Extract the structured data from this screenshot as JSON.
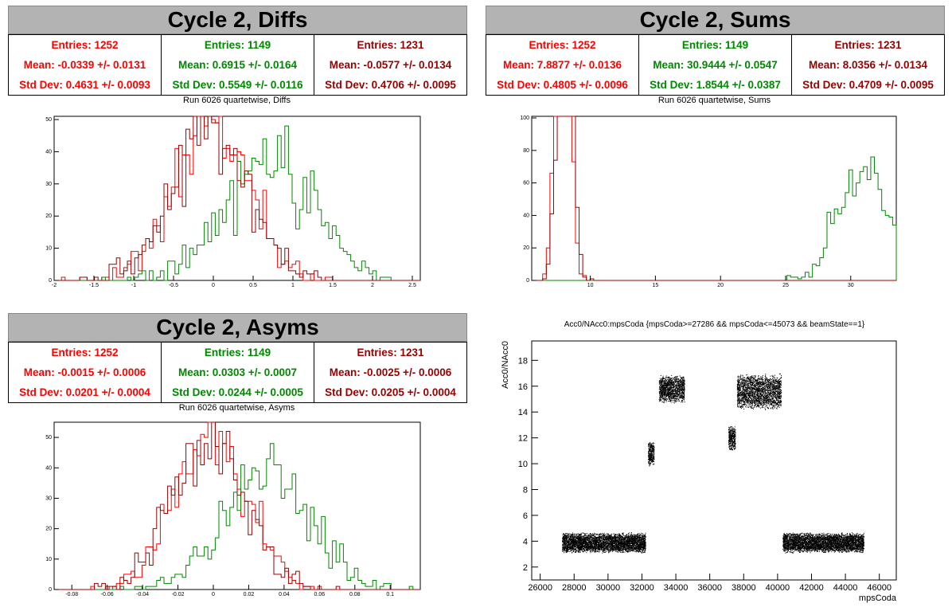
{
  "panels": {
    "diffs": {
      "title": "Cycle 2, Diffs",
      "subtitle": "Run 6026 quartetwise, Diffs",
      "stats": [
        {
          "entries": "Entries: 1252",
          "mean": "Mean: -0.0339 +/- 0.0131",
          "std": "Std Dev: 0.4631 +/- 0.0093",
          "color": "#ff0000"
        },
        {
          "entries": "Entries: 1149",
          "mean": "Mean: 0.6915 +/- 0.0164",
          "std": "Std Dev: 0.5549 +/- 0.0116",
          "color": "#008800"
        },
        {
          "entries": "Entries: 1231",
          "mean": "Mean: -0.0577 +/- 0.0134",
          "std": "Std Dev: 0.4706 +/- 0.0095",
          "color": "#990000"
        }
      ]
    },
    "sums": {
      "title": "Cycle 2, Sums",
      "subtitle": "Run 6026 quartetwise, Sums",
      "stats": [
        {
          "entries": "Entries: 1252",
          "mean": "Mean: 7.8877 +/- 0.0136",
          "std": "Std Dev: 0.4805 +/- 0.0096",
          "color": "#ff0000"
        },
        {
          "entries": "Entries: 1149",
          "mean": "Mean: 30.9444 +/- 0.0547",
          "std": "Std Dev: 1.8544 +/- 0.0387",
          "color": "#008800"
        },
        {
          "entries": "Entries: 1231",
          "mean": "Mean: 8.0356 +/- 0.0134",
          "std": "Std Dev: 0.4709 +/- 0.0095",
          "color": "#990000"
        }
      ]
    },
    "asyms": {
      "title": "Cycle 2, Asyms",
      "subtitle": "Run 6026 quartetwise, Asyms",
      "stats": [
        {
          "entries": "Entries: 1252",
          "mean": "Mean: -0.0015 +/- 0.0006",
          "std": "Std Dev: 0.0201 +/- 0.0004",
          "color": "#ff0000"
        },
        {
          "entries": "Entries: 1149",
          "mean": "Mean: 0.0303 +/- 0.0007",
          "std": "Std Dev: 0.0244 +/- 0.0005",
          "color": "#008800"
        },
        {
          "entries": "Entries: 1231",
          "mean": "Mean: -0.0025 +/- 0.0006",
          "std": "Std Dev: 0.0205 +/- 0.0004",
          "color": "#990000"
        }
      ]
    },
    "scatter": {
      "title": "Acc0/NAcc0:mpsCoda {mpsCoda>=27286 && mpsCoda<=45073 && beamState==1}"
    }
  },
  "chart_data": [
    {
      "type": "histogram",
      "name": "diffs",
      "xlim": [
        -2,
        2.6
      ],
      "ylim": [
        0,
        51
      ],
      "xticks": [
        -2,
        -1.5,
        -1,
        -0.5,
        0,
        0.5,
        1,
        1.5,
        2,
        2.5
      ],
      "yticks": [
        0,
        10,
        20,
        30,
        40,
        50
      ],
      "series": [
        {
          "color": "#ff0000",
          "mean": -0.0339,
          "std": 0.4631,
          "entries": 1252
        },
        {
          "color": "#008800",
          "mean": 0.6915,
          "std": 0.5549,
          "entries": 1149
        },
        {
          "color": "#990000",
          "mean": -0.0577,
          "std": 0.4706,
          "entries": 1231
        }
      ]
    },
    {
      "type": "histogram",
      "name": "sums",
      "xlim": [
        5.5,
        33.5
      ],
      "ylim": [
        0,
        101
      ],
      "xticks": [
        10,
        15,
        20,
        25,
        30
      ],
      "yticks": [
        0,
        20,
        40,
        60,
        80,
        100
      ],
      "series": [
        {
          "color": "#ff0000",
          "mean": 7.8877,
          "std": 0.4805,
          "entries": 1252
        },
        {
          "color": "#008800",
          "mean": 30.9444,
          "std": 1.8544,
          "entries": 1149
        },
        {
          "color": "#990000",
          "mean": 8.0356,
          "std": 0.4709,
          "entries": 1231
        }
      ]
    },
    {
      "type": "histogram",
      "name": "asyms",
      "xlim": [
        -0.09,
        0.117
      ],
      "ylim": [
        0,
        55
      ],
      "xticks": [
        -0.08,
        -0.06,
        -0.04,
        -0.02,
        0,
        0.02,
        0.04,
        0.06,
        0.08,
        0.1
      ],
      "yticks": [
        0,
        10,
        20,
        30,
        40,
        50
      ],
      "series": [
        {
          "color": "#ff0000",
          "mean": -0.0015,
          "std": 0.0201,
          "entries": 1252
        },
        {
          "color": "#008800",
          "mean": 0.0303,
          "std": 0.0244,
          "entries": 1149
        },
        {
          "color": "#990000",
          "mean": -0.0025,
          "std": 0.0205,
          "entries": 1231
        }
      ]
    },
    {
      "type": "scatter",
      "name": "acc0-vs-mpscoda",
      "xlabel": "mpsCoda",
      "ylabel": "Acc0/NAcc0",
      "xlim": [
        25500,
        47000
      ],
      "ylim": [
        1,
        19.5
      ],
      "xticks": [
        26000,
        28000,
        30000,
        32000,
        34000,
        36000,
        38000,
        40000,
        42000,
        44000,
        46000
      ],
      "yticks": [
        2,
        4,
        6,
        8,
        10,
        12,
        14,
        16,
        18
      ],
      "clusters": [
        {
          "x": [
            27286,
            32200
          ],
          "y_center": 3.9,
          "y_spread": 0.8
        },
        {
          "x": [
            32350,
            32700
          ],
          "y_center": 10.8,
          "y_spread": 1.0
        },
        {
          "x": [
            33000,
            34500
          ],
          "y_center": 15.8,
          "y_spread": 1.1
        },
        {
          "x": [
            37100,
            37500
          ],
          "y_center": 12.0,
          "y_spread": 1.0
        },
        {
          "x": [
            37600,
            40200
          ],
          "y_center": 15.6,
          "y_spread": 1.4
        },
        {
          "x": [
            40300,
            45073
          ],
          "y_center": 3.9,
          "y_spread": 0.8
        }
      ]
    }
  ]
}
